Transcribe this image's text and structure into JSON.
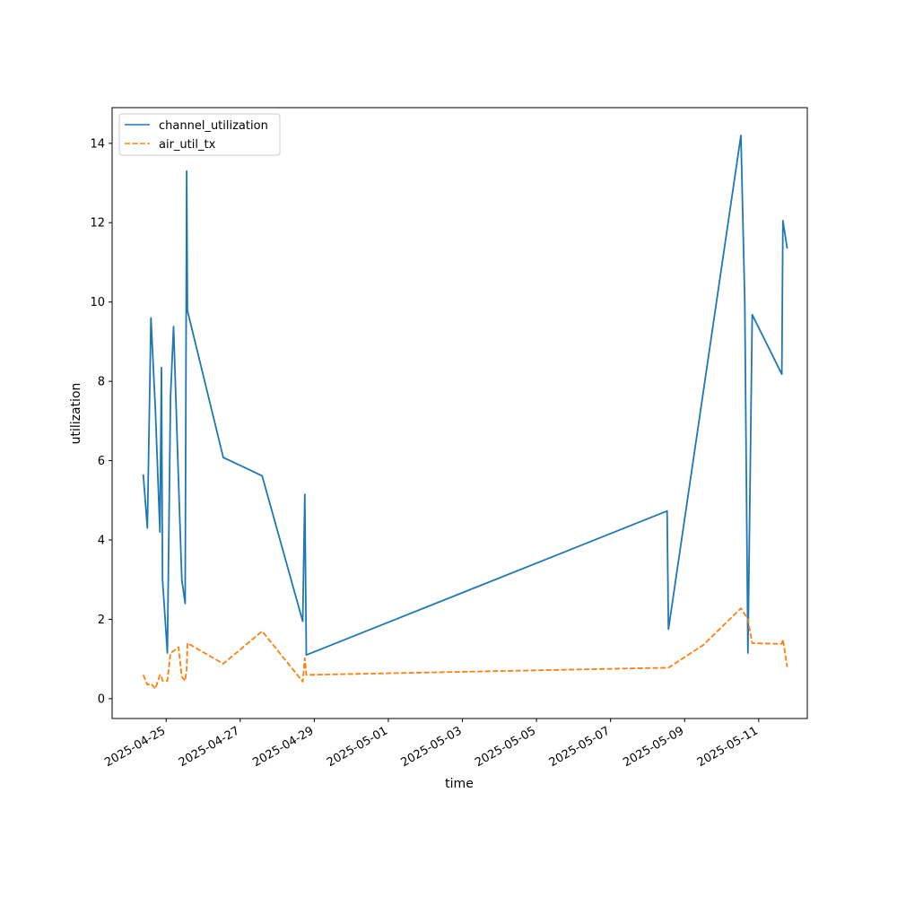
{
  "chart_data": {
    "type": "line",
    "xlabel": "time",
    "ylabel": "utilization",
    "x_type": "datetime",
    "xlim": [
      "2025-04-23T13:00",
      "2025-05-12T07:30"
    ],
    "ylim": [
      -0.5,
      14.9
    ],
    "yticks": [
      0,
      2,
      4,
      6,
      8,
      10,
      12,
      14
    ],
    "xticks": [
      "2025-04-25",
      "2025-04-27",
      "2025-04-29",
      "2025-05-01",
      "2025-05-03",
      "2025-05-05",
      "2025-05-07",
      "2025-05-09",
      "2025-05-11"
    ],
    "legend_position": "top-left",
    "grid": false,
    "series": [
      {
        "name": "channel_utilization",
        "color": "#1f77b4",
        "style": "solid",
        "points": [
          [
            "2025-04-24T09:10",
            5.65
          ],
          [
            "2025-04-24T11:50",
            4.3
          ],
          [
            "2025-04-24T14:10",
            9.6
          ],
          [
            "2025-04-24T17:00",
            7.3
          ],
          [
            "2025-04-24T20:00",
            4.2
          ],
          [
            "2025-04-24T21:00",
            8.35
          ],
          [
            "2025-04-24T21:40",
            3.0
          ],
          [
            "2025-04-25T00:50",
            1.15
          ],
          [
            "2025-04-25T02:50",
            7.6
          ],
          [
            "2025-04-25T04:50",
            9.38
          ],
          [
            "2025-04-25T08:00",
            5.5
          ],
          [
            "2025-04-25T10:10",
            3.0
          ],
          [
            "2025-04-25T12:20",
            2.4
          ],
          [
            "2025-04-25T13:20",
            13.3
          ],
          [
            "2025-04-25T13:50",
            9.78
          ],
          [
            "2025-04-26T13:00",
            6.08
          ],
          [
            "2025-04-27T14:10",
            5.62
          ],
          [
            "2025-04-28T16:30",
            1.95
          ],
          [
            "2025-04-28T17:50",
            5.15
          ],
          [
            "2025-04-28T18:50",
            1.1
          ],
          [
            "2025-05-08T12:40",
            4.73
          ],
          [
            "2025-05-08T13:30",
            1.75
          ],
          [
            "2025-05-10T12:30",
            14.2
          ],
          [
            "2025-05-10T15:00",
            10.0
          ],
          [
            "2025-05-10T17:00",
            1.15
          ],
          [
            "2025-05-10T19:50",
            9.68
          ],
          [
            "2025-05-11T15:00",
            8.18
          ],
          [
            "2025-05-11T15:40",
            12.05
          ],
          [
            "2025-05-11T18:30",
            11.35
          ]
        ]
      },
      {
        "name": "air_util_tx",
        "color": "#ff7f0e",
        "style": "dashed",
        "points": [
          [
            "2025-04-24T09:10",
            0.6
          ],
          [
            "2025-04-24T11:50",
            0.35
          ],
          [
            "2025-04-24T14:10",
            0.38
          ],
          [
            "2025-04-24T17:00",
            0.25
          ],
          [
            "2025-04-24T20:00",
            0.6
          ],
          [
            "2025-04-24T21:00",
            0.55
          ],
          [
            "2025-04-24T21:40",
            0.45
          ],
          [
            "2025-04-25T00:50",
            0.45
          ],
          [
            "2025-04-25T02:50",
            1.15
          ],
          [
            "2025-04-25T04:50",
            1.2
          ],
          [
            "2025-04-25T08:00",
            1.3
          ],
          [
            "2025-04-25T10:10",
            0.55
          ],
          [
            "2025-04-25T12:20",
            0.45
          ],
          [
            "2025-04-25T13:20",
            0.75
          ],
          [
            "2025-04-25T13:50",
            1.4
          ],
          [
            "2025-04-26T13:00",
            0.88
          ],
          [
            "2025-04-27T14:10",
            1.7
          ],
          [
            "2025-04-28T16:30",
            0.43
          ],
          [
            "2025-04-28T17:50",
            1.02
          ],
          [
            "2025-04-28T18:50",
            0.6
          ],
          [
            "2025-05-08T12:40",
            0.78
          ],
          [
            "2025-05-08T13:30",
            0.78
          ],
          [
            "2025-05-09T12:00",
            1.35
          ],
          [
            "2025-05-10T12:30",
            2.28
          ],
          [
            "2025-05-10T17:00",
            2.0
          ],
          [
            "2025-05-10T19:50",
            1.4
          ],
          [
            "2025-05-11T15:00",
            1.38
          ],
          [
            "2025-05-11T15:40",
            1.5
          ],
          [
            "2025-05-11T18:30",
            0.8
          ]
        ]
      }
    ]
  }
}
